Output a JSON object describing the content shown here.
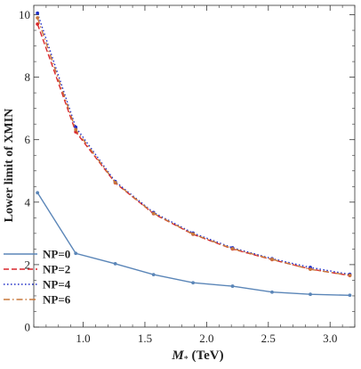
{
  "chart_data": {
    "type": "line",
    "title": "",
    "xlabel_main": "M",
    "xlabel_sub": "*",
    "xlabel_unit": " (TeV)",
    "ylabel": "Lower  limit of XMIN",
    "xlim": [
      0.6,
      3.2
    ],
    "ylim": [
      0,
      10.3
    ],
    "x_ticks": [
      1.0,
      1.5,
      2.0,
      2.5,
      3.0
    ],
    "x_tick_labels": [
      "1.0",
      "1.5",
      "2.0",
      "2.5",
      "3.0"
    ],
    "y_ticks": [
      0,
      2,
      4,
      6,
      8,
      10
    ],
    "y_tick_labels": [
      "0",
      "2",
      "4",
      "6",
      "8",
      "10"
    ],
    "legend_position": "lower-left",
    "series": [
      {
        "name": "NP=0",
        "color": "#5b86b8",
        "dash": "solid",
        "x": [
          0.63,
          0.94,
          1.26,
          1.57,
          1.89,
          2.21,
          2.53,
          2.84,
          3.16
        ],
        "y": [
          4.3,
          2.36,
          2.03,
          1.68,
          1.42,
          1.31,
          1.12,
          1.05,
          1.02
        ]
      },
      {
        "name": "NP=2",
        "color": "#d8262c",
        "dash": "dashed",
        "x": [
          0.63,
          0.94,
          1.26,
          1.57,
          1.89,
          2.21,
          2.53,
          2.84,
          3.16
        ],
        "y": [
          9.7,
          6.25,
          4.62,
          3.63,
          2.97,
          2.5,
          2.16,
          1.86,
          1.65
        ]
      },
      {
        "name": "NP=4",
        "color": "#1f2ec7",
        "dash": "dotted",
        "x": [
          0.63,
          0.94,
          1.26,
          1.57,
          1.89,
          2.21,
          2.53,
          2.84,
          3.16
        ],
        "y": [
          10.05,
          6.4,
          4.66,
          3.67,
          3.01,
          2.54,
          2.19,
          1.91,
          1.69
        ]
      },
      {
        "name": "NP=6",
        "color": "#c8783c",
        "dash": "dashdot",
        "x": [
          0.63,
          0.94,
          1.26,
          1.57,
          1.89,
          2.21,
          2.53,
          2.84,
          3.16
        ],
        "y": [
          9.9,
          6.32,
          4.63,
          3.64,
          2.98,
          2.51,
          2.17,
          1.85,
          1.66
        ]
      }
    ]
  }
}
